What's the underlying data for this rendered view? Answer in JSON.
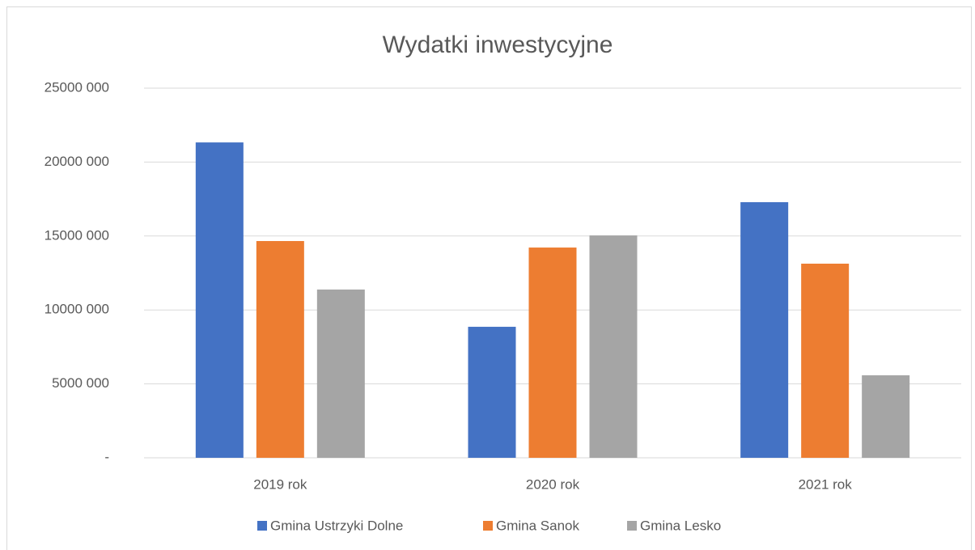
{
  "chart_data": {
    "type": "bar",
    "title": "Wydatki inwestycyjne",
    "categories": [
      "2019 rok",
      "2020 rok",
      "2021 rok"
    ],
    "series": [
      {
        "name": "Gmina Ustrzyki Dolne",
        "color": "#4472c4",
        "values": [
          21330000,
          8860000,
          17290000
        ]
      },
      {
        "name": "Gmina Sanok",
        "color": "#ed7d31",
        "values": [
          14660000,
          14220000,
          13130000
        ]
      },
      {
        "name": "Gmina Lesko",
        "color": "#a5a5a5",
        "values": [
          11380000,
          15040000,
          5580000
        ]
      }
    ],
    "ylim": [
      0,
      25000000
    ],
    "yticks": [
      {
        "value": 0,
        "label": "-"
      },
      {
        "value": 5000000,
        "label": "5000 000"
      },
      {
        "value": 10000000,
        "label": "10000 000"
      },
      {
        "value": 15000000,
        "label": "15000 000"
      },
      {
        "value": 20000000,
        "label": "20000 000"
      },
      {
        "value": 25000000,
        "label": "25000 000"
      }
    ],
    "grid": true,
    "legend": "bottom"
  }
}
